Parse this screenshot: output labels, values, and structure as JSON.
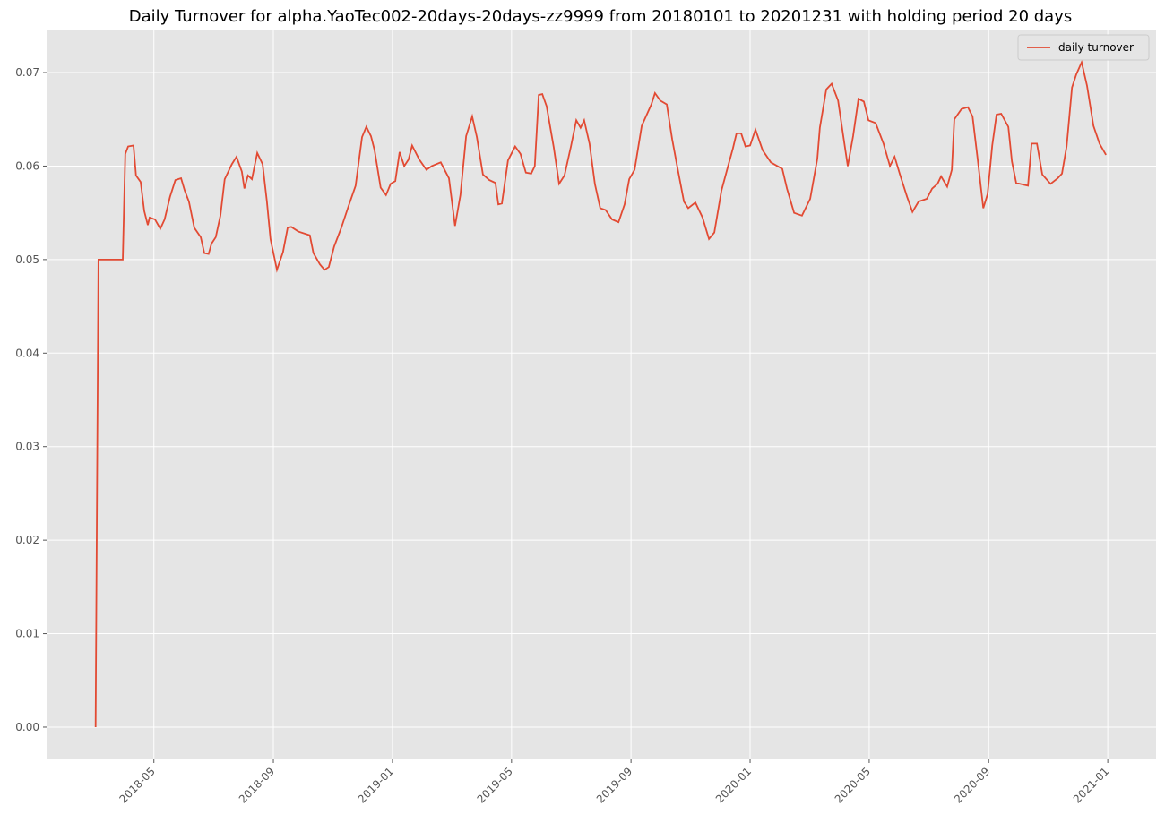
{
  "chart_data": {
    "type": "line",
    "title": "Daily Turnover for alpha.YaoTec002-20days-20days-zz9999 from 20180101 to 20201231 with holding period 20 days",
    "x": [
      2018.17,
      2018.178,
      2018.246,
      2018.253,
      2018.261,
      2018.276,
      2018.283,
      2018.296,
      2018.306,
      2018.316,
      2018.321,
      2018.336,
      2018.351,
      2018.363,
      2018.378,
      2018.393,
      2018.409,
      2018.419,
      2018.431,
      2018.446,
      2018.464,
      2018.474,
      2018.486,
      2018.494,
      2018.506,
      2018.519,
      2018.531,
      2018.551,
      2018.564,
      2018.579,
      2018.586,
      2018.596,
      2018.607,
      2018.622,
      2018.637,
      2018.649,
      2018.659,
      2018.677,
      2018.694,
      2018.707,
      2018.717,
      2018.737,
      2018.769,
      2018.779,
      2018.797,
      2018.81,
      2018.822,
      2018.837,
      2018.857,
      2018.877,
      2018.897,
      2018.915,
      2018.927,
      2018.94,
      2018.95,
      2018.967,
      2018.982,
      2018.995,
      2019.008,
      2019.02,
      2019.033,
      2019.045,
      2019.055,
      2019.075,
      2019.095,
      2019.11,
      2019.135,
      2019.158,
      2019.175,
      2019.19,
      2019.206,
      2019.223,
      2019.236,
      2019.253,
      2019.271,
      2019.288,
      2019.296,
      2019.306,
      2019.323,
      2019.343,
      2019.358,
      2019.373,
      2019.388,
      2019.398,
      2019.409,
      2019.419,
      2019.431,
      2019.451,
      2019.466,
      2019.481,
      2019.499,
      2019.514,
      2019.526,
      2019.536,
      2019.551,
      2019.566,
      2019.581,
      2019.596,
      2019.614,
      2019.632,
      2019.649,
      2019.662,
      2019.677,
      2019.697,
      2019.724,
      2019.734,
      2019.749,
      2019.767,
      2019.782,
      2019.797,
      2019.815,
      2019.827,
      2019.847,
      2019.867,
      2019.885,
      2019.9,
      2019.92,
      2019.937,
      2019.952,
      2019.962,
      2019.975,
      2019.987,
      2020.0,
      2020.015,
      2020.035,
      2020.058,
      2020.09,
      2020.103,
      2020.123,
      2020.145,
      2020.168,
      2020.188,
      2020.195,
      2020.213,
      2020.228,
      2020.246,
      2020.261,
      2020.273,
      2020.288,
      2020.303,
      2020.318,
      2020.331,
      2020.351,
      2020.373,
      2020.391,
      2020.404,
      2020.419,
      2020.439,
      2020.454,
      2020.471,
      2020.494,
      2020.509,
      2020.524,
      2020.534,
      2020.551,
      2020.564,
      2020.571,
      2020.591,
      2020.609,
      2020.622,
      2020.637,
      2020.652,
      2020.664,
      2020.677,
      2020.689,
      2020.702,
      2020.722,
      2020.732,
      2020.744,
      2020.777,
      2020.787,
      2020.802,
      2020.817,
      2020.84,
      2020.86,
      2020.872,
      2020.885,
      2020.9,
      2020.912,
      2020.927,
      2020.942,
      2020.96,
      2020.977,
      2020.995
    ],
    "series": [
      {
        "name": "daily turnover",
        "color": "#e24a33",
        "values": [
          0.0,
          0.05,
          0.05,
          0.0613,
          0.0621,
          0.0622,
          0.059,
          0.0583,
          0.0552,
          0.0537,
          0.0545,
          0.0543,
          0.0533,
          0.0543,
          0.0567,
          0.0585,
          0.0587,
          0.0574,
          0.0562,
          0.0534,
          0.0524,
          0.0507,
          0.0506,
          0.0517,
          0.0524,
          0.0547,
          0.0586,
          0.0602,
          0.061,
          0.0594,
          0.0576,
          0.059,
          0.0586,
          0.0614,
          0.0602,
          0.0562,
          0.0522,
          0.0489,
          0.0508,
          0.0534,
          0.0535,
          0.053,
          0.0526,
          0.0507,
          0.0495,
          0.0489,
          0.0492,
          0.0514,
          0.0534,
          0.0557,
          0.0579,
          0.0631,
          0.0642,
          0.0632,
          0.0617,
          0.0577,
          0.0569,
          0.0581,
          0.0584,
          0.0615,
          0.06,
          0.0607,
          0.0622,
          0.0607,
          0.0596,
          0.06,
          0.0604,
          0.0587,
          0.0536,
          0.0569,
          0.0632,
          0.0653,
          0.0631,
          0.0591,
          0.0585,
          0.0582,
          0.0559,
          0.056,
          0.0606,
          0.0621,
          0.0613,
          0.0593,
          0.0592,
          0.06,
          0.0676,
          0.0677,
          0.0664,
          0.062,
          0.0581,
          0.059,
          0.0621,
          0.0649,
          0.0641,
          0.0649,
          0.0624,
          0.0581,
          0.0555,
          0.0553,
          0.0543,
          0.054,
          0.0559,
          0.0586,
          0.0596,
          0.0643,
          0.0666,
          0.0678,
          0.067,
          0.0666,
          0.0629,
          0.0598,
          0.0562,
          0.0555,
          0.0561,
          0.0545,
          0.0522,
          0.0529,
          0.0574,
          0.0598,
          0.0619,
          0.0635,
          0.0635,
          0.0621,
          0.0622,
          0.0639,
          0.0617,
          0.0604,
          0.0597,
          0.0576,
          0.055,
          0.0547,
          0.0565,
          0.0608,
          0.0641,
          0.0682,
          0.0688,
          0.067,
          0.0631,
          0.06,
          0.0632,
          0.0672,
          0.0669,
          0.0649,
          0.0646,
          0.0624,
          0.06,
          0.061,
          0.0591,
          0.0567,
          0.0551,
          0.0562,
          0.0565,
          0.0576,
          0.0581,
          0.0589,
          0.0578,
          0.0596,
          0.065,
          0.0661,
          0.0663,
          0.0653,
          0.0605,
          0.0555,
          0.057,
          0.0622,
          0.0655,
          0.0656,
          0.0642,
          0.0605,
          0.0582,
          0.0579,
          0.0624,
          0.0624,
          0.0591,
          0.0581,
          0.0587,
          0.0592,
          0.0621,
          0.0684,
          0.0698,
          0.0711,
          0.0686,
          0.0643,
          0.0624,
          0.0612
        ]
      }
    ],
    "xlim": [
      2018.033,
      2021.135
    ],
    "xticks": [
      {
        "value": 2018.333,
        "label": "2018-05"
      },
      {
        "value": 2018.667,
        "label": "2018-09"
      },
      {
        "value": 2019,
        "label": "2019-01"
      },
      {
        "value": 2019.333,
        "label": "2019-05"
      },
      {
        "value": 2019.667,
        "label": "2019-09"
      },
      {
        "value": 2020,
        "label": "2020-01"
      },
      {
        "value": 2020.333,
        "label": "2020-05"
      },
      {
        "value": 2020.667,
        "label": "2020-09"
      },
      {
        "value": 2021,
        "label": "2021-01"
      }
    ],
    "ylim": [
      -0.00345,
      0.0746
    ],
    "yticks": [
      {
        "value": 0,
        "label": "0.00"
      },
      0.01,
      0.02,
      0.03,
      0.04,
      0.05,
      0.06,
      0.07
    ],
    "grid": true,
    "legend": "upper right"
  }
}
